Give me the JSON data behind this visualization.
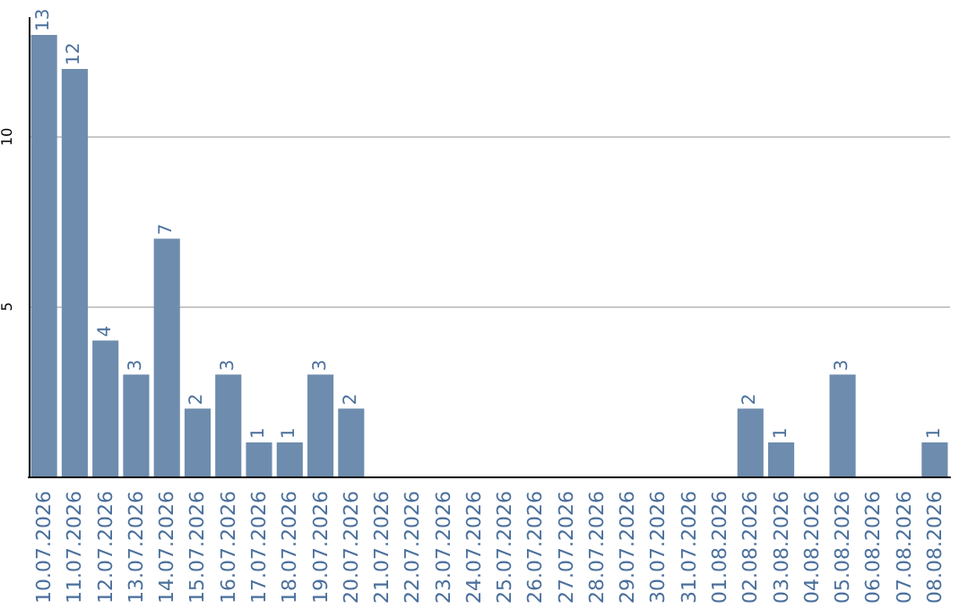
{
  "chart_data": {
    "type": "bar",
    "categories": [
      "10.07.2026",
      "11.07.2026",
      "12.07.2026",
      "13.07.2026",
      "14.07.2026",
      "15.07.2026",
      "16.07.2026",
      "17.07.2026",
      "18.07.2026",
      "19.07.2026",
      "20.07.2026",
      "21.07.2026",
      "22.07.2026",
      "23.07.2026",
      "24.07.2026",
      "25.07.2026",
      "26.07.2026",
      "27.07.2026",
      "28.07.2026",
      "29.07.2026",
      "30.07.2026",
      "31.07.2026",
      "01.08.2026",
      "02.08.2026",
      "03.08.2026",
      "04.08.2026",
      "05.08.2026",
      "06.08.2026",
      "07.08.2026",
      "08.08.2026"
    ],
    "values": [
      13,
      12,
      4,
      3,
      7,
      2,
      3,
      1,
      1,
      3,
      2,
      0,
      0,
      0,
      0,
      0,
      0,
      0,
      0,
      0,
      0,
      0,
      0,
      2,
      1,
      0,
      3,
      0,
      0,
      1
    ],
    "value_labels": [
      "13",
      "12",
      "4",
      "3",
      "7",
      "2",
      "3",
      "1",
      "1",
      "3",
      "2",
      null,
      null,
      null,
      null,
      null,
      null,
      null,
      null,
      null,
      null,
      null,
      null,
      "2",
      "1",
      null,
      "3",
      null,
      null,
      "1"
    ],
    "color": "#6e8cad",
    "ylim": [
      0,
      13.5
    ],
    "yticks": [
      5,
      10
    ],
    "grid": "y"
  }
}
